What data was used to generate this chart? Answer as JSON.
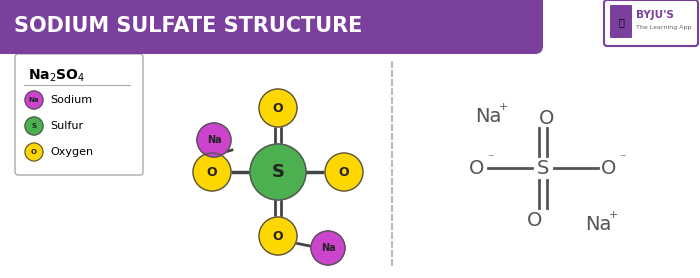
{
  "title": "SODIUM SULFATE STRUCTURE",
  "title_bg": "#7B3F9E",
  "title_color": "#FFFFFF",
  "bg_color": "#FFFFFF",
  "sulfur_color": "#4CAF50",
  "sodium_color": "#CC44CC",
  "oxygen_color": "#FFD700",
  "atom_edge_color": "#555555",
  "legend_items": [
    {
      "label": "Sodium",
      "color": "#CC44CC",
      "abbrev": "Na"
    },
    {
      "label": "Sulfur",
      "color": "#4CAF50",
      "abbrev": "S"
    },
    {
      "label": "Oxygen",
      "color": "#FFD700",
      "abbrev": "O"
    }
  ],
  "structural_text_color": "#555555",
  "byju_color": "#7B3F9E"
}
